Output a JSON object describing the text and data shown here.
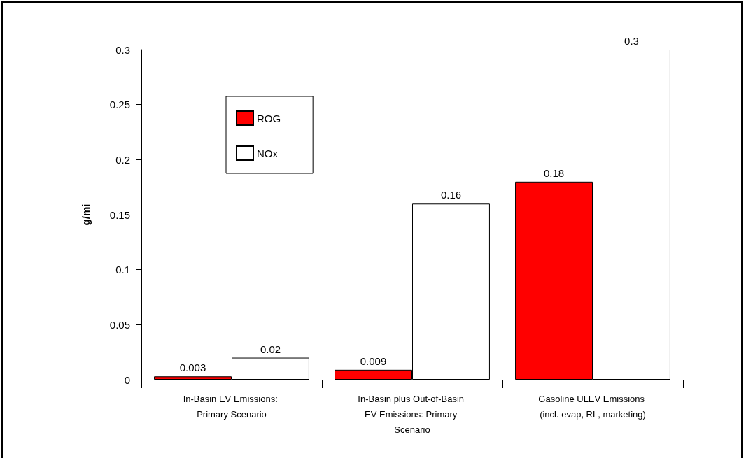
{
  "chart_data": {
    "type": "bar",
    "ylabel": "g/mi",
    "categories": [
      "In-Basin EV Emissions: Primary Scenario",
      "In-Basin plus Out-of-Basin EV Emissions: Primary Scenario",
      "Gasoline ULEV Emissions (incl. evap, RL, marketing)"
    ],
    "series": [
      {
        "name": "ROG",
        "color": "#ff0000",
        "values": [
          0.003,
          0.009,
          0.18
        ]
      },
      {
        "name": "NOx",
        "color": "#ffffff",
        "values": [
          0.02,
          0.16,
          0.3
        ]
      }
    ],
    "ylim": [
      0,
      0.3
    ],
    "yticks": [
      0,
      0.05,
      0.1,
      0.15,
      0.2,
      0.25,
      0.3
    ],
    "data_labels": true,
    "legend": "top left",
    "grid": false
  }
}
